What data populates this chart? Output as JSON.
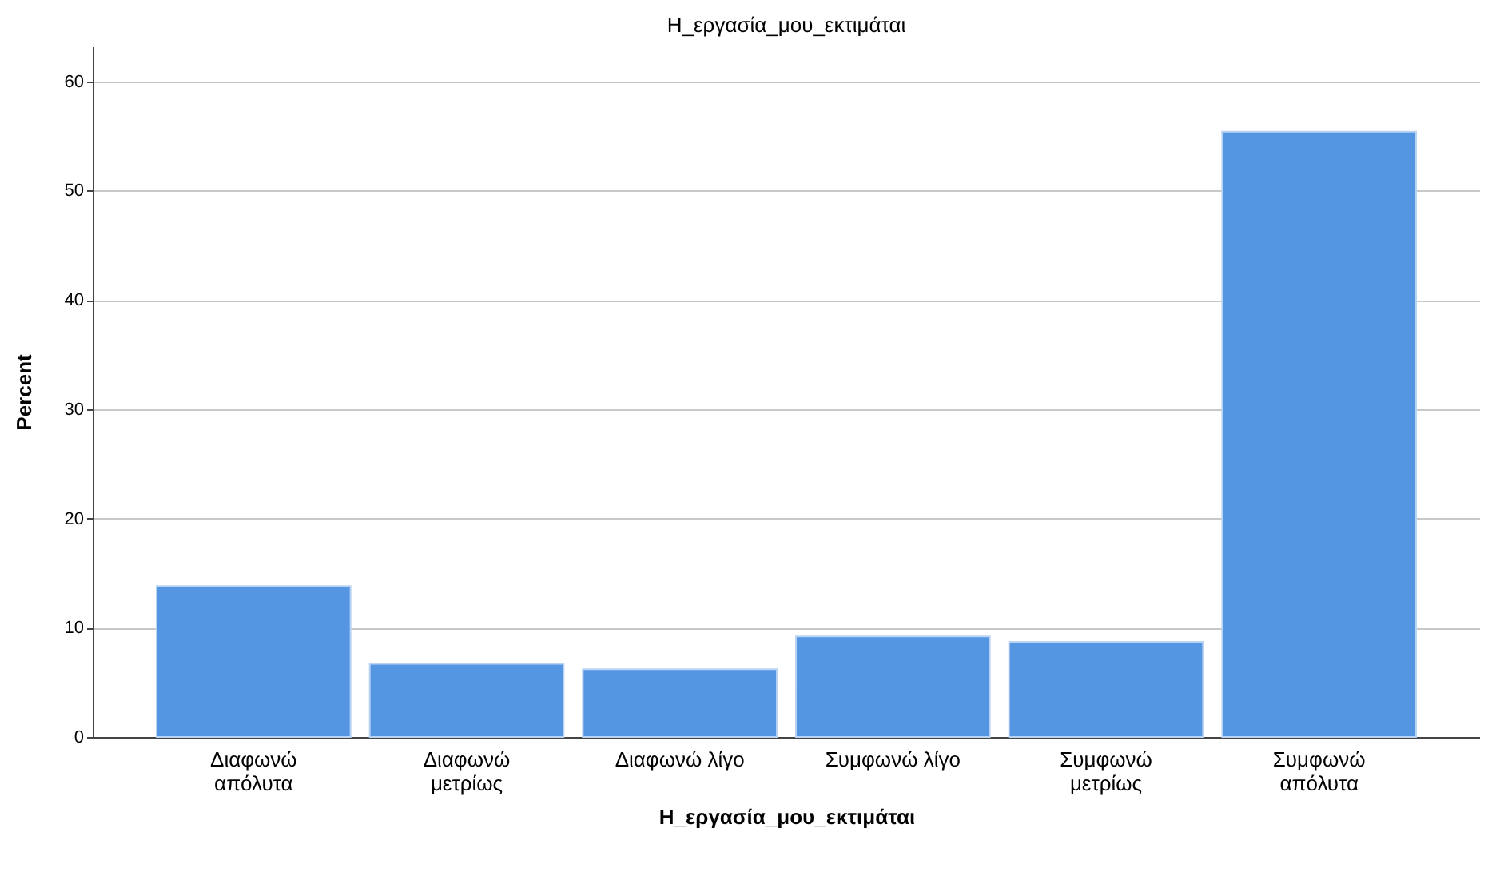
{
  "chart_data": {
    "type": "bar",
    "title": "Η_εργασία_μου_εκτιμάται",
    "xlabel": "Η_εργασία_μου_εκτιμάται",
    "ylabel": "Percent",
    "categories": [
      "Διαφωνώ απόλυτα",
      "Διαφωνώ μετρίως",
      "Διαφωνώ λίγο",
      "Συμφωνώ λίγο",
      "Συμφωνώ μετρίως",
      "Συμφωνώ απόλυτα"
    ],
    "values": [
      13.8,
      6.7,
      6.2,
      9.2,
      8.7,
      55.4
    ],
    "color": "#5596e3",
    "ylim": [
      0,
      63.2
    ],
    "yticks": [
      0,
      10,
      20,
      30,
      40,
      50,
      60
    ],
    "grid": "y"
  }
}
